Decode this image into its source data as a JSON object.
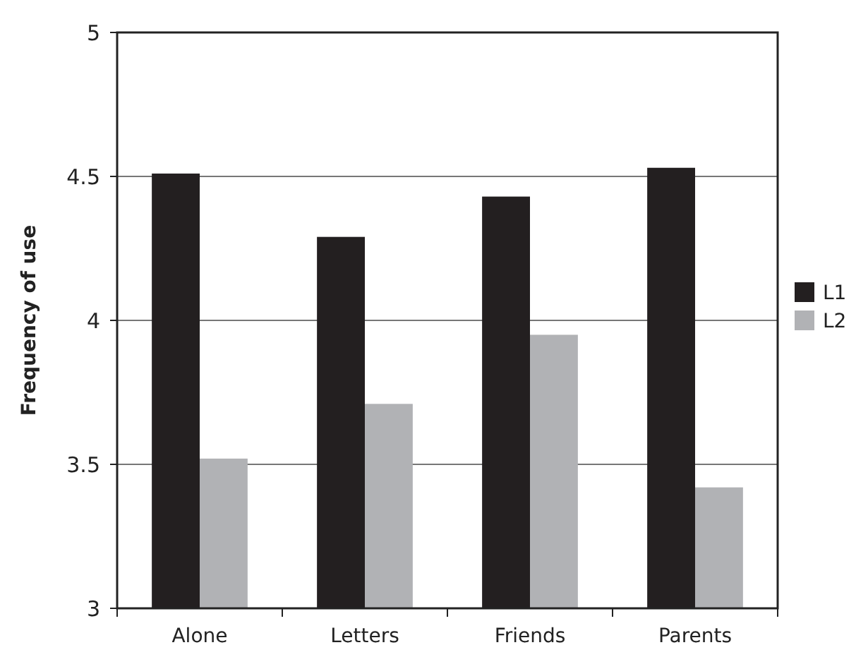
{
  "chart_data": {
    "type": "bar",
    "ylabel": "Frequency of use",
    "categories": [
      "Alone",
      "Letters",
      "Friends",
      "Parents"
    ],
    "series": [
      {
        "name": "L1",
        "color": "#231f20",
        "values": [
          4.51,
          4.29,
          4.43,
          4.53
        ]
      },
      {
        "name": "L2",
        "color": "#b1b2b5",
        "values": [
          3.52,
          3.71,
          3.95,
          3.42
        ]
      }
    ],
    "ylim": [
      3,
      5
    ],
    "yticks": [
      3,
      3.5,
      4,
      4.5,
      5
    ],
    "grid": "y",
    "legend": "right"
  }
}
